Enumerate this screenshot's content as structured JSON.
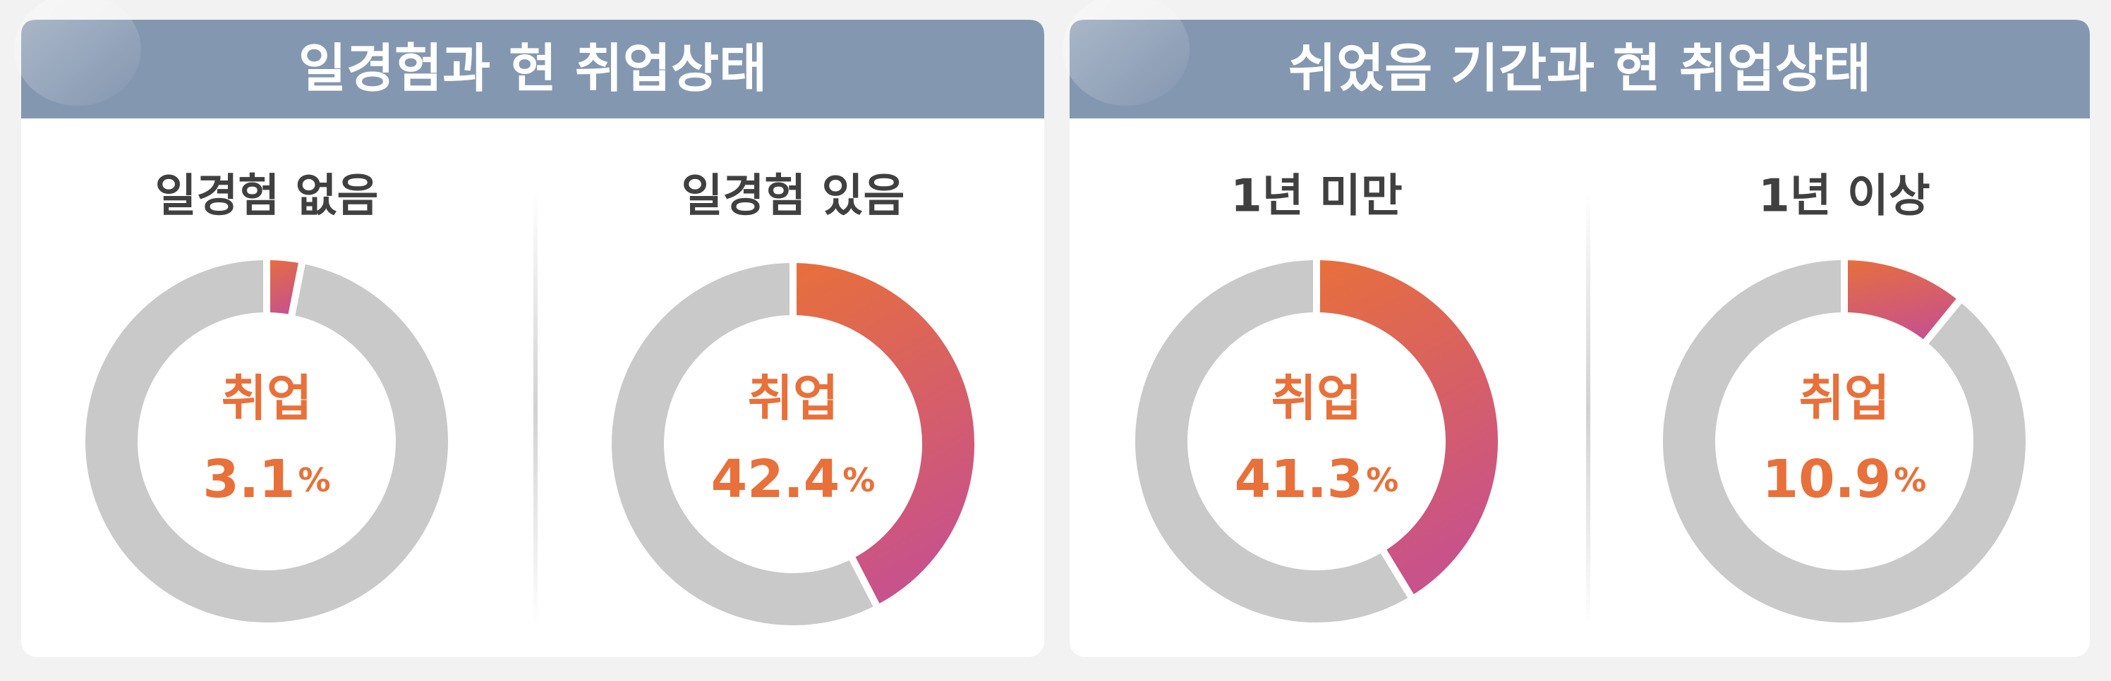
{
  "panels": [
    {
      "title": "일경험과 현 취업상태"
    },
    {
      "title": "쉬었음 기간과 현 취업상태"
    }
  ],
  "chart_data": [
    {
      "type": "donut",
      "title": "일경험 없음",
      "center_label": "취업",
      "values": [
        3.1
      ],
      "unit": "%",
      "color": "#e8703a",
      "gradient_end": "#c8528a",
      "remainder_color": "#c9c9c9"
    },
    {
      "type": "donut",
      "title": "일경험 있음",
      "center_label": "취업",
      "values": [
        42.4
      ],
      "unit": "%",
      "color": "#e8703a",
      "gradient_end": "#c8528a",
      "remainder_color": "#c9c9c9"
    },
    {
      "type": "donut",
      "title": "1년 미만",
      "center_label": "취업",
      "values": [
        41.3
      ],
      "unit": "%",
      "color": "#e8703a",
      "gradient_end": "#c8528a",
      "remainder_color": "#c9c9c9"
    },
    {
      "type": "donut",
      "title": "1년 이상",
      "center_label": "취업",
      "values": [
        10.9
      ],
      "unit": "%",
      "color": "#e8703a",
      "gradient_end": "#c8528a",
      "remainder_color": "#c9c9c9"
    }
  ]
}
